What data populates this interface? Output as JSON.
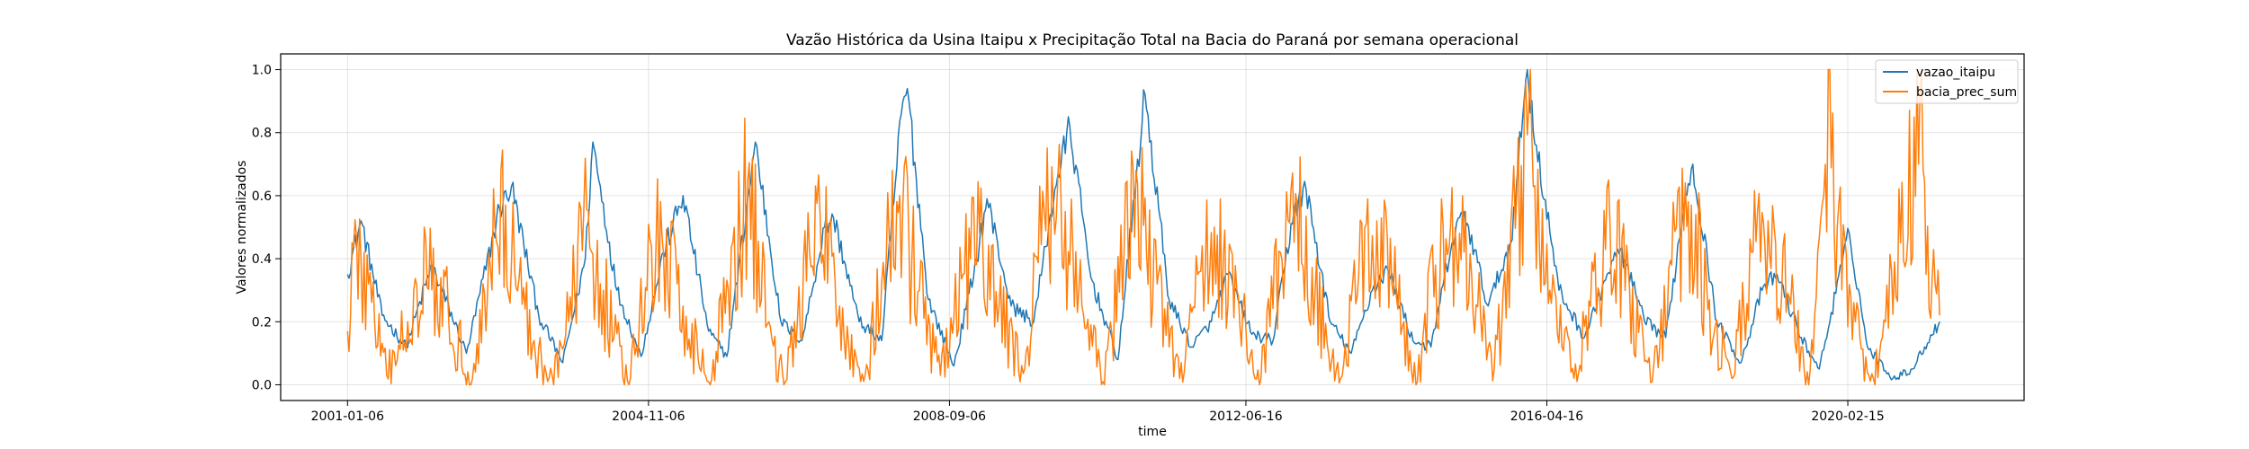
{
  "chart_data": {
    "type": "line",
    "title": "Vazão Histórica da Usina Itaipu x Precipitação Total na Bacia do Paraná por semana operacional",
    "xlabel": "time",
    "ylabel": "Valores normalizados",
    "x_tick_labels": [
      "2001-01-06",
      "2004-11-06",
      "2008-09-06",
      "2012-06-16",
      "2016-04-16",
      "2020-02-15"
    ],
    "y_tick_labels": [
      "0.0",
      "0.2",
      "0.4",
      "0.6",
      "0.8",
      "1.0"
    ],
    "y_ticks": [
      0.0,
      0.2,
      0.4,
      0.6,
      0.8,
      1.0
    ],
    "xlim": [
      "2000-03-01",
      "2022-05-15"
    ],
    "ylim": [
      -0.05,
      1.05
    ],
    "x_data_range": [
      "2001-01-06",
      "2021-04-17"
    ],
    "grid": true,
    "legend_position": "top-right",
    "series": [
      {
        "name": "vazao_itaipu",
        "color": "#1f77b4",
        "points": [
          [
            "2001-01-06",
            0.35
          ],
          [
            "2001-03-10",
            0.52
          ],
          [
            "2001-06-16",
            0.22
          ],
          [
            "2001-10-06",
            0.12
          ],
          [
            "2002-02-02",
            0.38
          ],
          [
            "2002-07-13",
            0.1
          ],
          [
            "2002-12-14",
            0.56
          ],
          [
            "2003-02-08",
            0.63
          ],
          [
            "2003-06-14",
            0.22
          ],
          [
            "2003-10-04",
            0.07
          ],
          [
            "2004-01-17",
            0.4
          ],
          [
            "2004-02-21",
            0.77
          ],
          [
            "2004-06-12",
            0.3
          ],
          [
            "2004-10-02",
            0.09
          ],
          [
            "2005-01-15",
            0.42
          ],
          [
            "2005-04-16",
            0.6
          ],
          [
            "2005-08-13",
            0.17
          ],
          [
            "2005-11-05",
            0.09
          ],
          [
            "2006-02-04",
            0.55
          ],
          [
            "2006-03-18",
            0.77
          ],
          [
            "2006-07-15",
            0.2
          ],
          [
            "2006-10-21",
            0.14
          ],
          [
            "2007-02-03",
            0.5
          ],
          [
            "2007-03-17",
            0.53
          ],
          [
            "2007-07-14",
            0.2
          ],
          [
            "2007-10-27",
            0.14
          ],
          [
            "2008-01-26",
            0.86
          ],
          [
            "2008-02-23",
            0.94
          ],
          [
            "2008-05-31",
            0.27
          ],
          [
            "2008-09-27",
            0.06
          ],
          [
            "2009-01-10",
            0.4
          ],
          [
            "2009-02-28",
            0.59
          ],
          [
            "2009-06-20",
            0.25
          ],
          [
            "2009-10-03",
            0.2
          ],
          [
            "2010-01-09",
            0.62
          ],
          [
            "2010-03-20",
            0.82
          ],
          [
            "2010-06-26",
            0.34
          ],
          [
            "2010-10-30",
            0.08
          ],
          [
            "2011-01-22",
            0.65
          ],
          [
            "2011-03-05",
            0.92
          ],
          [
            "2011-06-25",
            0.27
          ],
          [
            "2011-10-08",
            0.12
          ],
          [
            "2012-01-07",
            0.2
          ],
          [
            "2012-03-24",
            0.35
          ],
          [
            "2012-07-14",
            0.16
          ],
          [
            "2012-10-20",
            0.14
          ],
          [
            "2013-01-26",
            0.56
          ],
          [
            "2013-03-23",
            0.62
          ],
          [
            "2013-07-13",
            0.2
          ],
          [
            "2013-10-19",
            0.1
          ],
          [
            "2014-01-25",
            0.3
          ],
          [
            "2014-04-05",
            0.37
          ],
          [
            "2014-08-02",
            0.14
          ],
          [
            "2014-10-25",
            0.12
          ],
          [
            "2015-01-31",
            0.45
          ],
          [
            "2015-03-28",
            0.55
          ],
          [
            "2015-07-18",
            0.25
          ],
          [
            "2015-10-31",
            0.45
          ],
          [
            "2016-01-16",
            1.0
          ],
          [
            "2016-02-27",
            0.76
          ],
          [
            "2016-06-11",
            0.3
          ],
          [
            "2016-10-08",
            0.15
          ],
          [
            "2017-01-21",
            0.35
          ],
          [
            "2017-03-25",
            0.43
          ],
          [
            "2017-07-15",
            0.2
          ],
          [
            "2017-10-21",
            0.15
          ],
          [
            "2018-01-20",
            0.6
          ],
          [
            "2018-02-24",
            0.7
          ],
          [
            "2018-06-16",
            0.2
          ],
          [
            "2018-10-06",
            0.07
          ],
          [
            "2019-01-12",
            0.3
          ],
          [
            "2019-03-23",
            0.35
          ],
          [
            "2019-07-13",
            0.15
          ],
          [
            "2019-10-05",
            0.05
          ],
          [
            "2020-01-18",
            0.38
          ],
          [
            "2020-02-22",
            0.48
          ],
          [
            "2020-05-16",
            0.12
          ],
          [
            "2020-09-12",
            0.02
          ],
          [
            "2020-12-12",
            0.05
          ],
          [
            "2021-02-06",
            0.12
          ],
          [
            "2021-04-17",
            0.2
          ]
        ]
      },
      {
        "name": "bacia_prec_sum",
        "color": "#ff7f0e",
        "points": [
          [
            "2001-01-06",
            0.17
          ],
          [
            "2001-02-03",
            0.44
          ],
          [
            "2001-04-14",
            0.32
          ],
          [
            "2001-07-07",
            0.03
          ],
          [
            "2001-10-13",
            0.2
          ],
          [
            "2002-01-05",
            0.46
          ],
          [
            "2002-04-20",
            0.23
          ],
          [
            "2002-08-10",
            0.02
          ],
          [
            "2002-11-23",
            0.5
          ],
          [
            "2003-01-11",
            0.57
          ],
          [
            "2003-04-12",
            0.24
          ],
          [
            "2003-07-26",
            0.01
          ],
          [
            "2003-11-01",
            0.2
          ],
          [
            "2004-01-10",
            0.55
          ],
          [
            "2004-04-10",
            0.3
          ],
          [
            "2004-08-07",
            0.0
          ],
          [
            "2004-11-20",
            0.44
          ],
          [
            "2005-01-08",
            0.47
          ],
          [
            "2005-04-16",
            0.25
          ],
          [
            "2005-08-20",
            0.0
          ],
          [
            "2005-12-03",
            0.45
          ],
          [
            "2006-02-11",
            0.65
          ],
          [
            "2006-05-20",
            0.2
          ],
          [
            "2006-08-05",
            0.01
          ],
          [
            "2006-11-25",
            0.42
          ],
          [
            "2007-01-13",
            0.54
          ],
          [
            "2007-04-14",
            0.25
          ],
          [
            "2007-08-04",
            0.01
          ],
          [
            "2007-11-17",
            0.4
          ],
          [
            "2008-01-19",
            0.6
          ],
          [
            "2008-04-19",
            0.3
          ],
          [
            "2008-07-26",
            0.03
          ],
          [
            "2008-11-08",
            0.35
          ],
          [
            "2009-01-24",
            0.48
          ],
          [
            "2009-04-25",
            0.25
          ],
          [
            "2009-08-22",
            0.05
          ],
          [
            "2009-11-21",
            0.55
          ],
          [
            "2010-02-06",
            0.62
          ],
          [
            "2010-05-01",
            0.3
          ],
          [
            "2010-08-21",
            0.01
          ],
          [
            "2010-11-27",
            0.42
          ],
          [
            "2011-01-29",
            0.64
          ],
          [
            "2011-04-30",
            0.32
          ],
          [
            "2011-08-13",
            0.02
          ],
          [
            "2011-11-19",
            0.36
          ],
          [
            "2012-01-21",
            0.5
          ],
          [
            "2012-05-05",
            0.3
          ],
          [
            "2012-08-18",
            0.0
          ],
          [
            "2012-11-24",
            0.42
          ],
          [
            "2013-02-09",
            0.58
          ],
          [
            "2013-05-04",
            0.3
          ],
          [
            "2013-08-31",
            0.02
          ],
          [
            "2013-11-23",
            0.35
          ],
          [
            "2014-02-15",
            0.52
          ],
          [
            "2014-05-17",
            0.28
          ],
          [
            "2014-08-16",
            0.0
          ],
          [
            "2014-11-15",
            0.38
          ],
          [
            "2015-01-24",
            0.5
          ],
          [
            "2015-05-02",
            0.35
          ],
          [
            "2015-08-15",
            0.05
          ],
          [
            "2015-11-28",
            0.6
          ],
          [
            "2016-01-23",
            0.88
          ],
          [
            "2016-04-30",
            0.3
          ],
          [
            "2016-08-20",
            0.02
          ],
          [
            "2016-11-19",
            0.36
          ],
          [
            "2017-02-04",
            0.5
          ],
          [
            "2017-05-06",
            0.3
          ],
          [
            "2017-08-19",
            0.01
          ],
          [
            "2017-11-18",
            0.38
          ],
          [
            "2018-02-17",
            0.57
          ],
          [
            "2018-05-12",
            0.27
          ],
          [
            "2018-08-25",
            0.02
          ],
          [
            "2018-11-24",
            0.42
          ],
          [
            "2019-02-09",
            0.52
          ],
          [
            "2019-05-18",
            0.28
          ],
          [
            "2019-08-17",
            0.0
          ],
          [
            "2019-10-26",
            0.6
          ],
          [
            "2019-11-16",
            1.0
          ],
          [
            "2019-12-28",
            0.5
          ],
          [
            "2020-03-21",
            0.2
          ],
          [
            "2020-06-13",
            0.02
          ],
          [
            "2020-10-17",
            0.45
          ],
          [
            "2020-12-19",
            0.85
          ],
          [
            "2021-01-16",
            0.93
          ],
          [
            "2021-02-13",
            0.35
          ],
          [
            "2021-03-13",
            0.33
          ],
          [
            "2021-04-17",
            0.22
          ]
        ]
      }
    ]
  }
}
